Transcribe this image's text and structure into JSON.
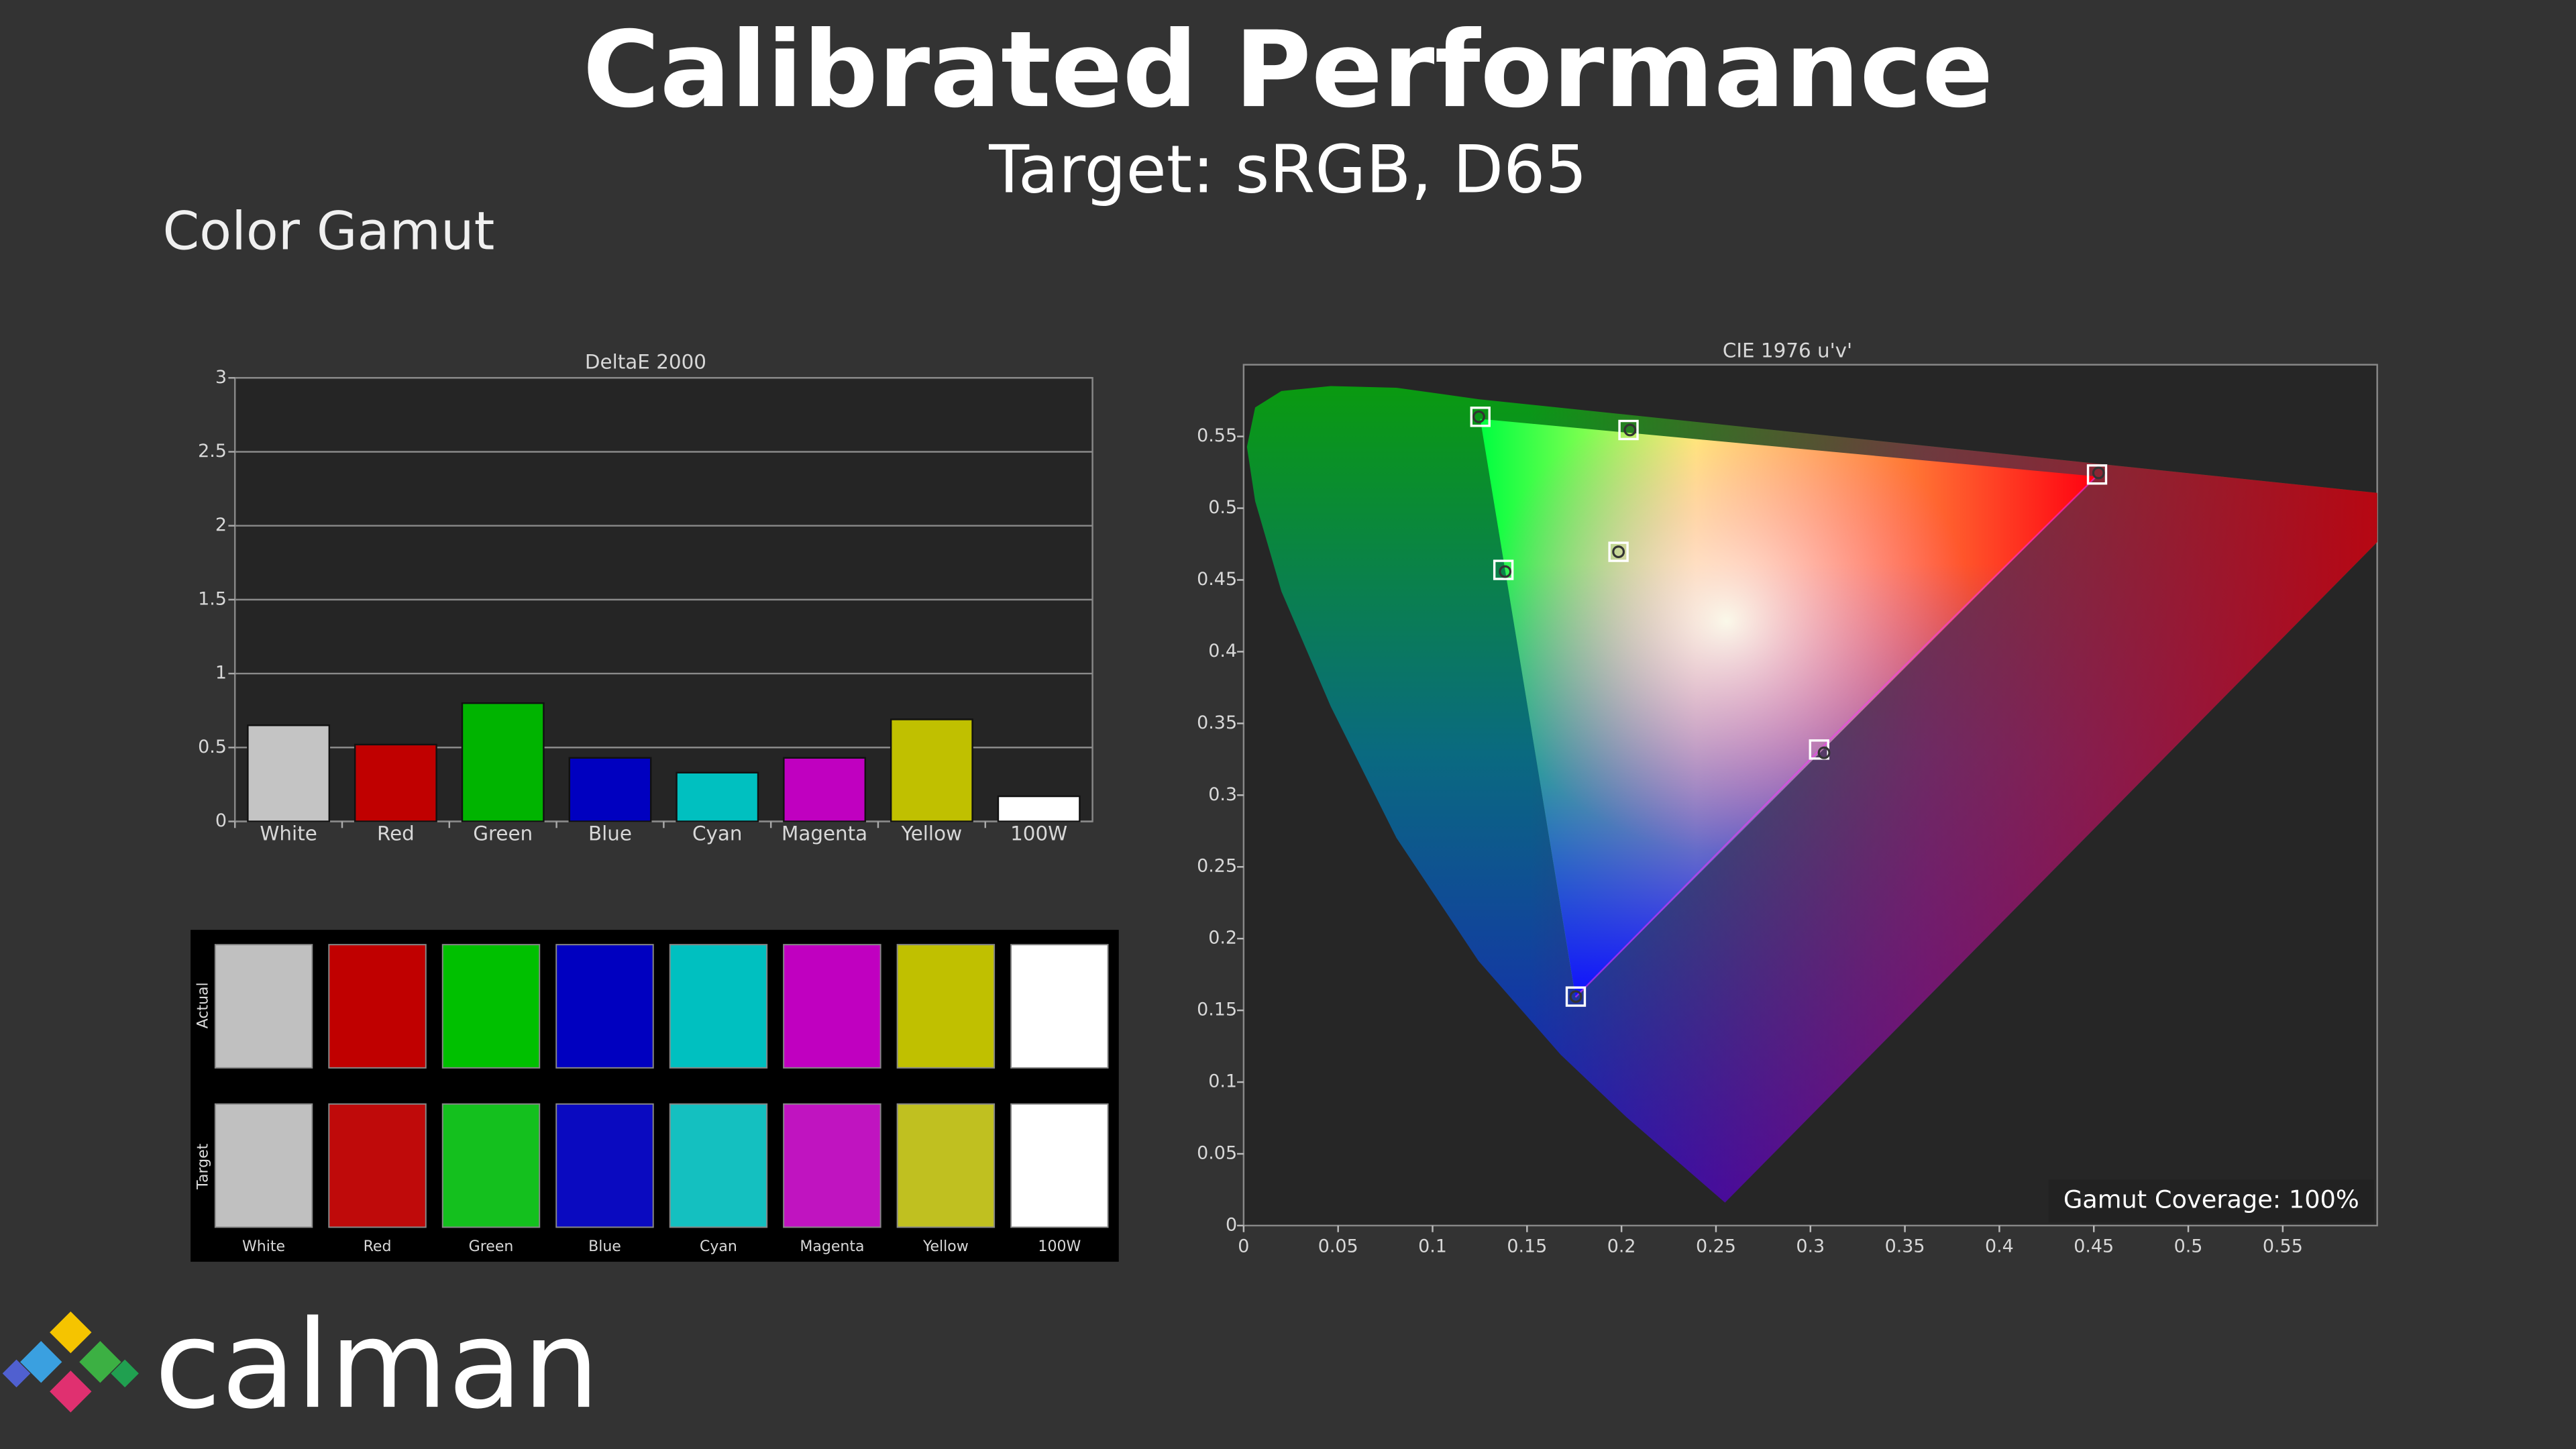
{
  "title": "Calibrated Performance",
  "subtitle": "Target: sRGB, D65",
  "section": "Color Gamut",
  "logo": "calman",
  "swatches": {
    "row_labels": [
      "Actual",
      "Target"
    ],
    "labels": [
      "White",
      "Red",
      "Green",
      "Blue",
      "Cyan",
      "Magenta",
      "Yellow",
      "100W"
    ],
    "actual_colors": [
      "#c0c0c0",
      "#c00000",
      "#00c000",
      "#0000c0",
      "#00c0c0",
      "#c000c0",
      "#c0c000",
      "#ffffff"
    ],
    "target_colors": [
      "#c0c0c0",
      "#bf0a0a",
      "#14c01e",
      "#0a0ac0",
      "#14c0c0",
      "#c014c0",
      "#c0c020",
      "#ffffff"
    ]
  },
  "chart_data": [
    {
      "type": "bar",
      "title": "DeltaE 2000",
      "categories": [
        "White",
        "Red",
        "Green",
        "Blue",
        "Cyan",
        "Magenta",
        "Yellow",
        "100W"
      ],
      "values": [
        0.65,
        0.52,
        0.8,
        0.43,
        0.33,
        0.43,
        0.69,
        0.17
      ],
      "colors": [
        "#c4c4c4",
        "#c00000",
        "#00b400",
        "#0000c0",
        "#00c0c0",
        "#c000c0",
        "#c0c000",
        "#ffffff"
      ],
      "ylim": [
        0,
        3
      ],
      "yticks": [
        0,
        0.5,
        1,
        1.5,
        2,
        2.5,
        3
      ],
      "grid": true
    },
    {
      "type": "scatter",
      "title": "CIE 1976 u'v'",
      "xlim": [
        0,
        0.6
      ],
      "ylim": [
        0,
        0.6
      ],
      "xticks": [
        0,
        0.05,
        0.1,
        0.15,
        0.2,
        0.25,
        0.3,
        0.35,
        0.4,
        0.45,
        0.5,
        0.55
      ],
      "yticks": [
        0,
        0.05,
        0.1,
        0.15,
        0.2,
        0.25,
        0.3,
        0.35,
        0.4,
        0.45,
        0.5,
        0.55
      ],
      "series": [
        {
          "marker": "square",
          "color": "#ffffff",
          "x": [
            0.4517,
            0.1253,
            0.1758,
            0.1375,
            0.3046,
            0.2037,
            0.1984
          ],
          "values": [
            0.5235,
            0.5637,
            0.1596,
            0.457,
            0.3318,
            0.5545,
            0.4696
          ]
        },
        {
          "marker": "circle",
          "color": "#333333",
          "x": [
            0.4525,
            0.1245,
            0.1758,
            0.1384,
            0.3072,
            0.2045,
            0.1984
          ],
          "values": [
            0.5246,
            0.5637,
            0.1596,
            0.4558,
            0.3295,
            0.5545,
            0.4696
          ]
        }
      ],
      "annotation": "Gamut Coverage:  100%"
    }
  ]
}
